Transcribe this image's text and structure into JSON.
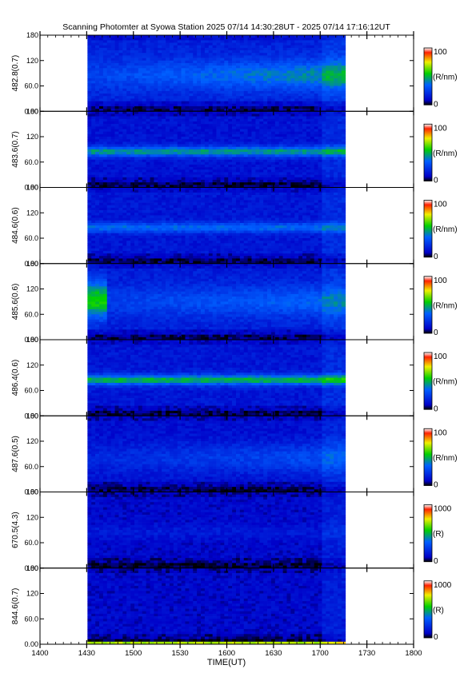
{
  "title": "Scanning Photomter at Syowa Station  2025 07/14 14:30:28UT - 2025 07/14 17:16:12UT",
  "chart_data": {
    "type": "heatmap",
    "xlabel": "TIME(UT)",
    "x_range_minutes": [
      840,
      1080
    ],
    "x_ticks": [
      "1400",
      "1430",
      "1500",
      "1530",
      "1600",
      "1630",
      "1700",
      "1730",
      "1800"
    ],
    "data_extent_minutes": [
      870.5,
      1036.2
    ],
    "y_ticks": [
      "0.00",
      "60.0",
      "120",
      "180"
    ],
    "ylim": [
      0,
      180
    ],
    "panels": [
      {
        "ylabel": "482.8(0.7)",
        "unit": "(R/nm)",
        "cbar_max": "100",
        "cbar_min": "0",
        "emission": "diffuse",
        "band_center": 85,
        "base": 0.17,
        "band_strength": 0.18
      },
      {
        "ylabel": "483.6(0.7)",
        "unit": "(R/nm)",
        "cbar_max": "100",
        "cbar_min": "0",
        "emission": "band",
        "band_center": 85,
        "base": 0.13,
        "band_strength": 0.32
      },
      {
        "ylabel": "484.6(0.6)",
        "unit": "(R/nm)",
        "cbar_max": "100",
        "cbar_min": "0",
        "emission": "band",
        "band_center": 85,
        "base": 0.14,
        "band_strength": 0.22
      },
      {
        "ylabel": "485.6(0.6)",
        "unit": "(R/nm)",
        "cbar_max": "100",
        "cbar_min": "0",
        "emission": "burst",
        "band_center": 90,
        "base": 0.16,
        "band_strength": 0.2
      },
      {
        "ylabel": "486.4(0.6)",
        "unit": "(R/nm)",
        "cbar_max": "100",
        "cbar_min": "0",
        "emission": "band",
        "band_center": 85,
        "base": 0.14,
        "band_strength": 0.36
      },
      {
        "ylabel": "487.6(0.5)",
        "unit": "(R/nm)",
        "cbar_max": "100",
        "cbar_min": "0",
        "emission": "diffuse",
        "band_center": 80,
        "base": 0.12,
        "band_strength": 0.12
      },
      {
        "ylabel": "670.5(4.3)",
        "unit": "(R)",
        "cbar_max": "1000",
        "cbar_min": "0",
        "emission": "faint",
        "band_center": 85,
        "base": 0.1,
        "band_strength": 0.05
      },
      {
        "ylabel": "844.6(0.7)",
        "unit": "(R)",
        "cbar_max": "1000",
        "cbar_min": "0",
        "emission": "floor",
        "band_center": 0,
        "base": 0.1,
        "band_strength": 0.55
      }
    ]
  }
}
